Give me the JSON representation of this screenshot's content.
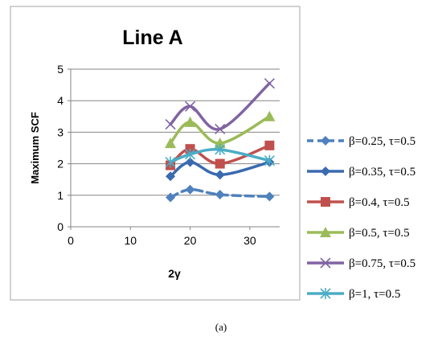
{
  "caption": "(a)",
  "chart_data": {
    "type": "line",
    "title": "Line A",
    "xlabel": "2γ",
    "ylabel": "Maximum SCF",
    "xlim": [
      0,
      35
    ],
    "ylim": [
      0,
      5
    ],
    "xticks": [
      0,
      10,
      20,
      30
    ],
    "yticks": [
      0,
      1,
      2,
      3,
      4,
      5
    ],
    "grid": "horizontal",
    "legend_position": "right",
    "series": [
      {
        "name": "β=0.25, τ=0.5",
        "color": "#4f81bd",
        "marker": "diamond",
        "dashed": true,
        "x": [
          16.7,
          20,
          25,
          33.3
        ],
        "y": [
          0.93,
          1.18,
          1.02,
          0.96
        ]
      },
      {
        "name": "β=0.35, τ=0.5",
        "color": "#3a6ab0",
        "marker": "diamond",
        "dashed": false,
        "x": [
          16.7,
          20,
          25,
          33.3
        ],
        "y": [
          1.6,
          2.05,
          1.65,
          2.05
        ]
      },
      {
        "name": "β=0.4, τ=0.5",
        "color": "#c0504d",
        "marker": "square",
        "dashed": false,
        "x": [
          16.7,
          20,
          25,
          33.3
        ],
        "y": [
          1.95,
          2.47,
          2.0,
          2.58
        ]
      },
      {
        "name": "β=0.5, τ=0.5",
        "color": "#9bbb59",
        "marker": "triangle",
        "dashed": false,
        "x": [
          16.7,
          20,
          25,
          33.3
        ],
        "y": [
          2.65,
          3.32,
          2.65,
          3.5
        ]
      },
      {
        "name": "β=0.75, τ=0.5",
        "color": "#8064a2",
        "marker": "x",
        "dashed": false,
        "x": [
          16.7,
          20,
          25,
          33.3
        ],
        "y": [
          3.25,
          3.82,
          3.1,
          4.55
        ]
      },
      {
        "name": "β=1, τ=0.5",
        "color": "#4bacc6",
        "marker": "star",
        "dashed": false,
        "x": [
          16.7,
          20,
          25,
          33.3
        ],
        "y": [
          2.05,
          2.3,
          2.45,
          2.1
        ]
      }
    ]
  }
}
